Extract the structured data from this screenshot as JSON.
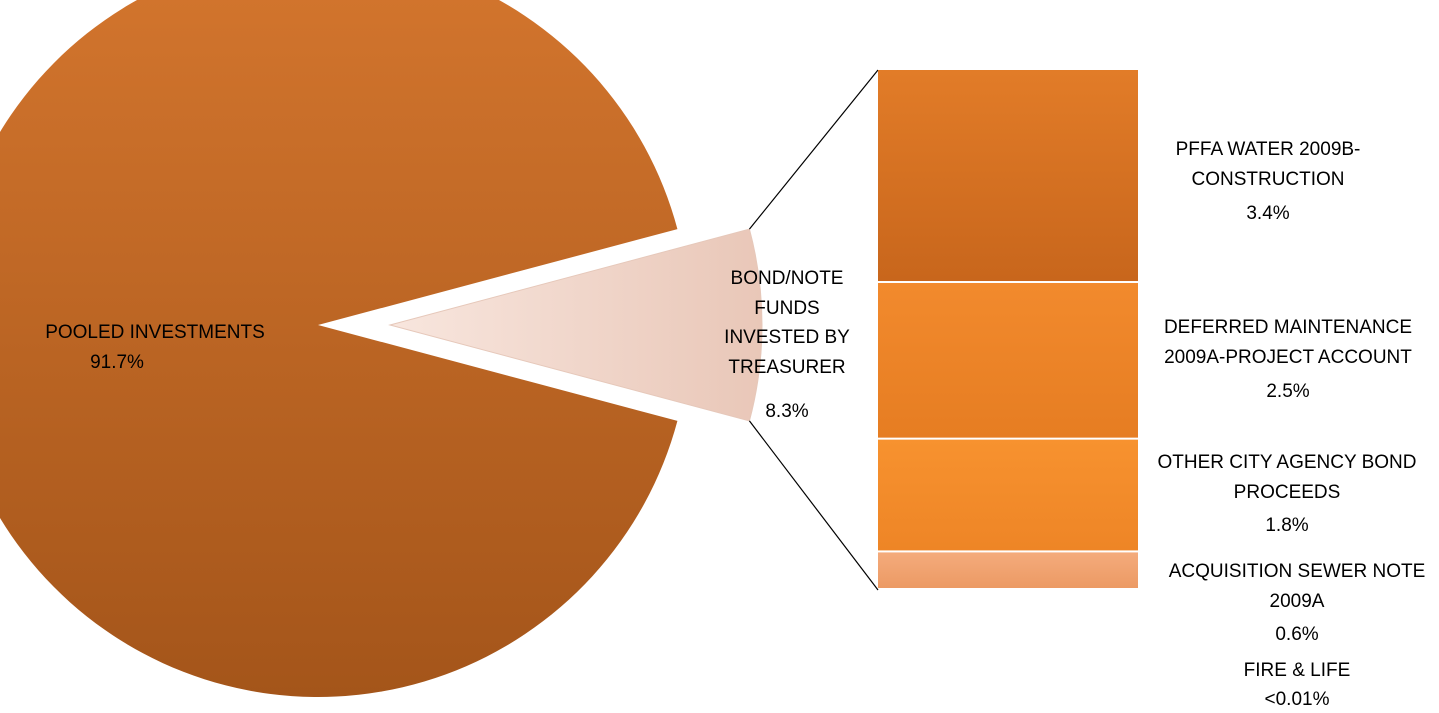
{
  "chart_data": {
    "type": "bar-of-pie",
    "title": "",
    "pie": {
      "slices": [
        {
          "label": "POOLED INVESTMENTS",
          "value": 91.7,
          "pct_label": "91.7%",
          "color": "#c9661f"
        },
        {
          "label_lines": [
            "BOND/NOTE",
            "FUNDS",
            "INVESTED BY",
            "TREASURER"
          ],
          "value": 8.3,
          "pct_label": "8.3%",
          "color": "#f2d8cd"
        }
      ]
    },
    "bar": {
      "segments": [
        {
          "label_lines": [
            "PFFA WATER 2009B-",
            "CONSTRUCTION"
          ],
          "value": 3.4,
          "pct_label": "3.4%",
          "color": "#d8721f"
        },
        {
          "label_lines": [
            "DEFERRED MAINTENANCE",
            "2009A-PROJECT ACCOUNT"
          ],
          "value": 2.5,
          "pct_label": "2.5%",
          "color": "#ec8428"
        },
        {
          "label_lines": [
            "OTHER CITY AGENCY BOND",
            "PROCEEDS"
          ],
          "value": 1.8,
          "pct_label": "1.8%",
          "color": "#f28b2e"
        },
        {
          "label_lines": [
            "ACQUISITION SEWER NOTE",
            "2009A"
          ],
          "value": 0.6,
          "pct_label": "0.6%",
          "color": "#f0a070"
        },
        {
          "label_lines": [
            "FIRE & LIFE"
          ],
          "value": 0.0,
          "pct_label": "<0.01%",
          "color": "#f0a070"
        }
      ]
    }
  }
}
